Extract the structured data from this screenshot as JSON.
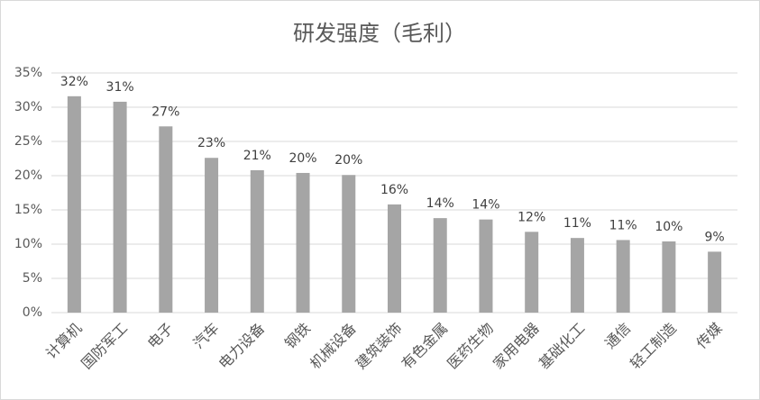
{
  "chart_data": {
    "type": "bar",
    "title": "研发强度（毛利）",
    "categories": [
      "计算机",
      "国防军工",
      "电子",
      "汽车",
      "电力设备",
      "钢铁",
      "机械设备",
      "建筑装饰",
      "有色金属",
      "医药生物",
      "家用电器",
      "基础化工",
      "通信",
      "轻工制造",
      "传媒"
    ],
    "values": [
      31.6,
      30.8,
      27.2,
      22.6,
      20.8,
      20.4,
      20.1,
      15.8,
      13.8,
      13.6,
      11.8,
      10.9,
      10.6,
      10.4,
      8.9
    ],
    "value_labels": [
      "32%",
      "31%",
      "27%",
      "23%",
      "21%",
      "20%",
      "20%",
      "16%",
      "14%",
      "14%",
      "12%",
      "11%",
      "11%",
      "10%",
      "9%"
    ],
    "color": "#a5a5a5",
    "ylim": [
      0,
      35
    ],
    "yticks": [
      {
        "value": 0,
        "label": "0%"
      },
      {
        "value": 5,
        "label": "5%"
      },
      {
        "value": 10,
        "label": "10%"
      },
      {
        "value": 15,
        "label": "15%"
      },
      {
        "value": 20,
        "label": "20%"
      },
      {
        "value": 25,
        "label": "25%"
      },
      {
        "value": 30,
        "label": "30%"
      },
      {
        "value": 35,
        "label": "35%"
      }
    ],
    "grid": true
  }
}
